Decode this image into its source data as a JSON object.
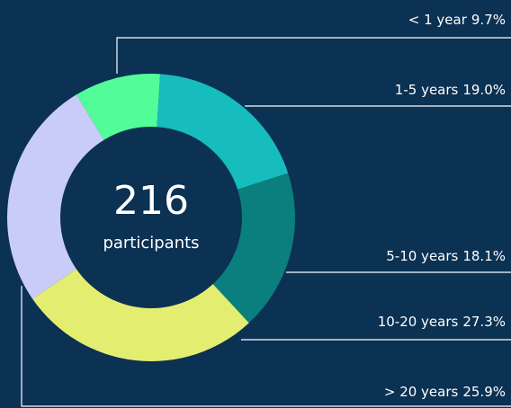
{
  "chart_data": {
    "type": "donut",
    "center_value": "216",
    "center_label": "participants",
    "categories": [
      "< 1 year",
      "1-5 years",
      "5-10 years",
      "10-20 years",
      "> 20 years"
    ],
    "values": [
      9.7,
      19.0,
      18.1,
      27.3,
      25.9
    ],
    "value_labels": [
      "9.7%",
      "19.0%",
      "18.1%",
      "27.3%",
      "25.9%"
    ],
    "colors": [
      "#52fc98",
      "#17bcbd",
      "#0a7f7d",
      "#e3ee71",
      "#c9ccf9"
    ]
  }
}
